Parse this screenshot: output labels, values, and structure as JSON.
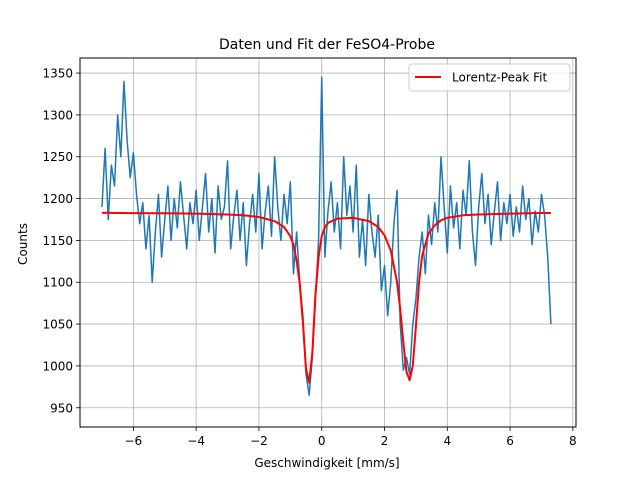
{
  "chart_data": {
    "type": "line",
    "title": "Daten und Fit der FeSO4-Probe",
    "xlabel": "Geschwindigkeit [mm/s]",
    "ylabel": "Counts",
    "xlim": [
      -7.7,
      8.1
    ],
    "ylim": [
      927,
      1368
    ],
    "xticks": [
      -6,
      -4,
      -2,
      0,
      2,
      4,
      6,
      8
    ],
    "yticks": [
      950,
      1000,
      1050,
      1100,
      1150,
      1200,
      1250,
      1300,
      1350
    ],
    "grid": true,
    "legend": {
      "position": "top-right",
      "entries": [
        "Lorentz-Peak Fit"
      ]
    },
    "colors": {
      "data": "#1f77b4",
      "fit": "#ff0000"
    },
    "series": [
      {
        "name": "",
        "style": "line",
        "x": [
          -7.0,
          -6.9,
          -6.8,
          -6.7,
          -6.6,
          -6.5,
          -6.4,
          -6.3,
          -6.2,
          -6.1,
          -6.0,
          -5.9,
          -5.8,
          -5.7,
          -5.6,
          -5.5,
          -5.4,
          -5.3,
          -5.2,
          -5.1,
          -5.0,
          -4.9,
          -4.8,
          -4.7,
          -4.6,
          -4.5,
          -4.4,
          -4.3,
          -4.2,
          -4.1,
          -4.0,
          -3.9,
          -3.8,
          -3.7,
          -3.6,
          -3.5,
          -3.4,
          -3.3,
          -3.2,
          -3.1,
          -3.0,
          -2.9,
          -2.8,
          -2.7,
          -2.6,
          -2.5,
          -2.4,
          -2.3,
          -2.2,
          -2.1,
          -2.0,
          -1.9,
          -1.8,
          -1.7,
          -1.6,
          -1.5,
          -1.4,
          -1.3,
          -1.2,
          -1.1,
          -1.0,
          -0.9,
          -0.8,
          -0.7,
          -0.6,
          -0.5,
          -0.4,
          -0.3,
          -0.2,
          -0.1,
          0.0,
          0.1,
          0.2,
          0.3,
          0.4,
          0.5,
          0.6,
          0.7,
          0.8,
          0.9,
          1.0,
          1.1,
          1.2,
          1.3,
          1.4,
          1.5,
          1.6,
          1.7,
          1.8,
          1.9,
          2.0,
          2.1,
          2.2,
          2.3,
          2.4,
          2.5,
          2.6,
          2.7,
          2.8,
          2.9,
          3.0,
          3.1,
          3.2,
          3.3,
          3.4,
          3.5,
          3.6,
          3.7,
          3.8,
          3.9,
          4.0,
          4.1,
          4.2,
          4.3,
          4.4,
          4.5,
          4.6,
          4.7,
          4.8,
          4.9,
          5.0,
          5.1,
          5.2,
          5.3,
          5.4,
          5.5,
          5.6,
          5.7,
          5.8,
          5.9,
          6.0,
          6.1,
          6.2,
          6.3,
          6.4,
          6.5,
          6.6,
          6.7,
          6.8,
          6.9,
          7.0,
          7.1,
          7.2,
          7.3
        ],
        "y": [
          1190,
          1260,
          1175,
          1240,
          1215,
          1300,
          1250,
          1340,
          1270,
          1225,
          1255,
          1205,
          1170,
          1195,
          1140,
          1180,
          1100,
          1160,
          1205,
          1130,
          1175,
          1215,
          1150,
          1200,
          1165,
          1220,
          1180,
          1140,
          1195,
          1170,
          1210,
          1150,
          1190,
          1230,
          1160,
          1200,
          1135,
          1215,
          1175,
          1190,
          1245,
          1140,
          1180,
          1210,
          1150,
          1195,
          1120,
          1170,
          1205,
          1160,
          1230,
          1140,
          1185,
          1215,
          1155,
          1250,
          1190,
          1150,
          1205,
          1170,
          1220,
          1110,
          1160,
          1100,
          1060,
          990,
          965,
          1010,
          1080,
          1150,
          1345,
          1130,
          1185,
          1220,
          1160,
          1195,
          1140,
          1250,
          1180,
          1215,
          1160,
          1240,
          1130,
          1175,
          1120,
          1205,
          1160,
          1130,
          1180,
          1090,
          1120,
          1060,
          1100,
          1170,
          1210,
          1050,
          995,
          1010,
          990,
          1050,
          1080,
          1130,
          1160,
          1110,
          1180,
          1145,
          1195,
          1160,
          1250,
          1190,
          1135,
          1215,
          1165,
          1195,
          1140,
          1210,
          1180,
          1245,
          1160,
          1120,
          1190,
          1230,
          1170,
          1205,
          1145,
          1185,
          1220,
          1150,
          1195,
          1170,
          1205,
          1155,
          1190,
          1160,
          1215,
          1175,
          1200,
          1145,
          1185,
          1160,
          1205,
          1180,
          1130,
          1050
        ]
      },
      {
        "name": "Lorentz-Peak Fit",
        "style": "line",
        "x": [
          -7.0,
          -6.0,
          -5.0,
          -4.0,
          -3.0,
          -2.5,
          -2.0,
          -1.5,
          -1.2,
          -1.0,
          -0.9,
          -0.8,
          -0.7,
          -0.6,
          -0.5,
          -0.4,
          -0.3,
          -0.2,
          -0.1,
          0.0,
          0.1,
          0.2,
          0.5,
          1.0,
          1.5,
          1.8,
          2.0,
          2.2,
          2.4,
          2.5,
          2.6,
          2.7,
          2.8,
          2.9,
          3.0,
          3.1,
          3.2,
          3.4,
          3.6,
          3.8,
          4.0,
          4.5,
          5.0,
          6.0,
          7.0,
          7.3
        ],
        "y": [
          1183,
          1182.6,
          1182.4,
          1182,
          1181,
          1180,
          1178,
          1173,
          1166,
          1155,
          1145,
          1126,
          1098,
          1052,
          996,
          980,
          1015,
          1085,
          1130,
          1155,
          1166,
          1171,
          1176,
          1177,
          1173,
          1166,
          1156,
          1138,
          1100,
          1068,
          1028,
          993,
          983,
          1000,
          1047,
          1100,
          1132,
          1158,
          1168,
          1174,
          1177,
          1180,
          1181,
          1182,
          1182.7,
          1182.8
        ]
      }
    ]
  }
}
